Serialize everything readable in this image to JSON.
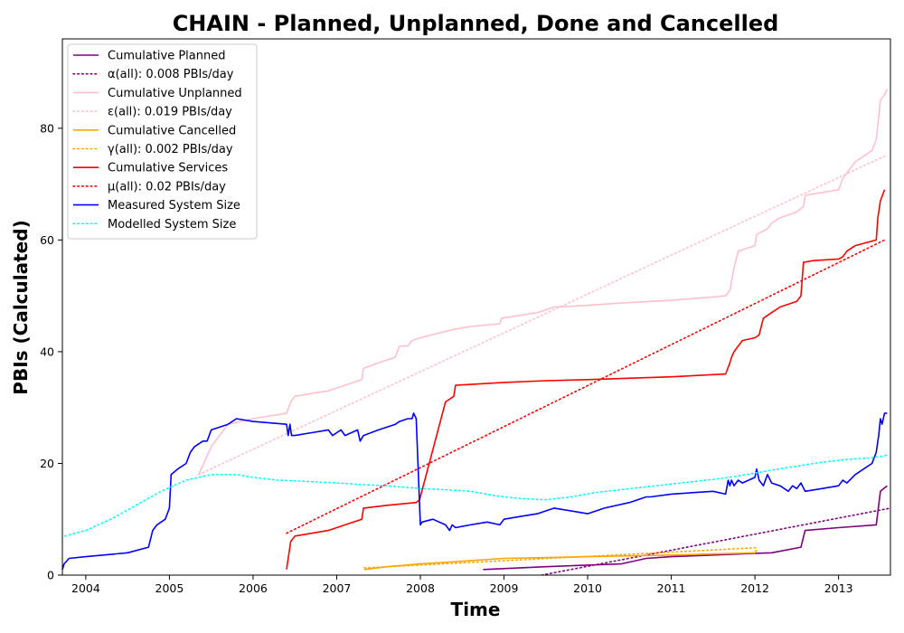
{
  "chart_data": {
    "type": "line",
    "title": "CHAIN - Planned, Unplanned, Done  and Cancelled",
    "xlabel": "Time",
    "ylabel": "PBIs (Calculated)",
    "xlim": [
      2003.72,
      2013.62
    ],
    "ylim": [
      0,
      96
    ],
    "x_ticks": [
      2004,
      2005,
      2006,
      2007,
      2008,
      2009,
      2010,
      2011,
      2012,
      2013
    ],
    "y_ticks": [
      0,
      20,
      40,
      60,
      80
    ],
    "grid": false,
    "legend_position": "top-left",
    "series": [
      {
        "name": "Cumulative Planned",
        "color": "#800080",
        "style": "solid",
        "x": [
          2008.75,
          2009.5,
          2010.0,
          2010.4,
          2010.7,
          2011.0,
          2011.5,
          2012.0,
          2012.2,
          2012.55,
          2012.6,
          2013.0,
          2013.45,
          2013.5,
          2013.58
        ],
        "y": [
          1,
          1.5,
          1.8,
          2,
          3,
          3.3,
          3.6,
          3.9,
          4,
          5,
          8,
          8.5,
          9,
          15,
          16
        ]
      },
      {
        "name": "α(all): 0.008 PBIs/day",
        "color": "#800080",
        "style": "dotted",
        "x": [
          2009.45,
          2013.62
        ],
        "y": [
          0,
          12
        ]
      },
      {
        "name": "Cumulative Unplanned",
        "color": "#ffc0cb",
        "style": "solid",
        "x": [
          2005.35,
          2005.5,
          2005.7,
          2006.0,
          2006.2,
          2006.4,
          2006.45,
          2006.5,
          2006.7,
          2006.9,
          2007.0,
          2007.1,
          2007.3,
          2007.32,
          2007.5,
          2007.7,
          2007.75,
          2007.85,
          2007.9,
          2008.0,
          2008.4,
          2008.6,
          2008.95,
          2008.97,
          2009.4,
          2009.6,
          2009.65,
          2010.0,
          2010.5,
          2011.0,
          2011.5,
          2011.65,
          2011.7,
          2011.75,
          2011.8,
          2012.0,
          2012.02,
          2012.15,
          2012.2,
          2012.3,
          2012.5,
          2012.58,
          2012.6,
          2013.0,
          2013.05,
          2013.1,
          2013.2,
          2013.3,
          2013.4,
          2013.45,
          2013.5,
          2013.55,
          2013.58
        ],
        "y": [
          18,
          23,
          27,
          28,
          28.5,
          29,
          31,
          32,
          32.5,
          33,
          33.5,
          34,
          35,
          37,
          38,
          39,
          41,
          41,
          42,
          42.5,
          44,
          44.5,
          45,
          46,
          47,
          48,
          48,
          48.3,
          48.8,
          49.2,
          49.8,
          50,
          51,
          55,
          58,
          59,
          61,
          62,
          63,
          64,
          65,
          66,
          68,
          69,
          71,
          72,
          74,
          75,
          76,
          78,
          85,
          86,
          87
        ]
      },
      {
        "name": "ε(all): 0.019 PBIs/day",
        "color": "#ffc0cb",
        "style": "dotted",
        "x": [
          2005.35,
          2013.55
        ],
        "y": [
          18,
          75
        ]
      },
      {
        "name": "Cumulative Cancelled",
        "color": "#ffa500",
        "style": "solid",
        "x": [
          2007.33,
          2007.6,
          2008.0,
          2008.5,
          2009.0,
          2010.0,
          2011.0,
          2012.0,
          2012.02
        ],
        "y": [
          1,
          1.5,
          2,
          2.5,
          3,
          3.3,
          3.6,
          4,
          4.5
        ]
      },
      {
        "name": "γ(all): 0.002 PBIs/day",
        "color": "#ffa500",
        "style": "dotted",
        "x": [
          2007.33,
          2012.02
        ],
        "y": [
          1.3,
          4.9
        ]
      },
      {
        "name": "Cumulative Services",
        "color": "#ff0000",
        "style": "solid",
        "x": [
          2006.4,
          2006.42,
          2006.45,
          2006.5,
          2006.7,
          2006.9,
          2007.0,
          2007.1,
          2007.3,
          2007.32,
          2007.6,
          2007.95,
          2007.99,
          2008.0,
          2008.3,
          2008.4,
          2008.42,
          2009.0,
          2009.5,
          2010.0,
          2011.0,
          2011.65,
          2011.7,
          2011.72,
          2011.75,
          2011.8,
          2011.85,
          2012.0,
          2012.05,
          2012.1,
          2012.2,
          2012.3,
          2012.5,
          2012.55,
          2012.58,
          2012.7,
          2013.0,
          2013.05,
          2013.1,
          2013.2,
          2013.45,
          2013.47,
          2013.5,
          2013.55
        ],
        "y": [
          1,
          3,
          6,
          7,
          7.5,
          8,
          8.5,
          9,
          10,
          12,
          12.5,
          13,
          13.5,
          14,
          31,
          32,
          34,
          34.5,
          34.8,
          35,
          35.5,
          36,
          38,
          39,
          40,
          41,
          42,
          42.5,
          43,
          46,
          47,
          48,
          49,
          50,
          56,
          56.3,
          56.6,
          57,
          58,
          59,
          60,
          64,
          67,
          69
        ]
      },
      {
        "name": "μ(all): 0.02 PBIs/day",
        "color": "#ff0000",
        "style": "dotted",
        "x": [
          2006.4,
          2013.55
        ],
        "y": [
          7.5,
          60
        ]
      },
      {
        "name": "Measured System Size",
        "color": "#0000ff",
        "style": "solid",
        "x": [
          2003.72,
          2003.74,
          2003.8,
          2004.0,
          2004.5,
          2004.75,
          2004.8,
          2004.85,
          2004.95,
          2005.0,
          2005.02,
          2005.1,
          2005.2,
          2005.25,
          2005.3,
          2005.4,
          2005.45,
          2005.5,
          2005.7,
          2005.8,
          2006.0,
          2006.4,
          2006.42,
          2006.44,
          2006.46,
          2006.5,
          2006.7,
          2006.9,
          2006.95,
          2007.0,
          2007.05,
          2007.1,
          2007.25,
          2007.28,
          2007.3,
          2007.32,
          2007.5,
          2007.7,
          2007.75,
          2007.85,
          2007.9,
          2007.92,
          2007.95,
          2008.0,
          2008.02,
          2008.15,
          2008.3,
          2008.35,
          2008.38,
          2008.42,
          2008.6,
          2008.8,
          2008.95,
          2009.0,
          2009.2,
          2009.4,
          2009.6,
          2010.0,
          2010.2,
          2010.5,
          2010.7,
          2010.75,
          2011.0,
          2011.5,
          2011.65,
          2011.68,
          2011.7,
          2011.72,
          2011.75,
          2011.8,
          2011.85,
          2012.0,
          2012.02,
          2012.05,
          2012.1,
          2012.15,
          2012.2,
          2012.3,
          2012.4,
          2012.45,
          2012.5,
          2012.55,
          2012.6,
          2012.8,
          2013.0,
          2013.05,
          2013.1,
          2013.2,
          2013.3,
          2013.4,
          2013.45,
          2013.48,
          2013.5,
          2013.52,
          2013.55,
          2013.58
        ],
        "y": [
          1,
          2,
          3,
          3.3,
          4,
          5,
          8,
          9,
          10,
          12,
          18,
          19,
          20,
          22,
          23,
          24,
          24,
          26,
          27,
          28,
          27.5,
          27,
          25,
          27,
          25,
          25,
          25.5,
          26,
          25,
          25.5,
          26,
          25,
          26,
          24,
          24.5,
          25,
          26,
          27,
          27.5,
          28,
          28,
          29,
          28,
          9,
          9.5,
          10,
          9,
          8,
          9,
          8.5,
          9,
          9.5,
          9,
          10,
          10.5,
          11,
          12,
          11,
          12,
          13,
          14,
          14,
          14.5,
          15,
          14.5,
          17,
          16,
          17,
          16,
          17,
          16.5,
          17.5,
          19,
          17,
          16,
          18,
          16.5,
          16,
          15,
          16,
          15.5,
          16.5,
          15,
          15.5,
          16,
          17,
          16.5,
          18,
          19,
          20,
          22,
          25,
          28,
          27,
          29,
          29
        ]
      },
      {
        "name": "Modelled System Size",
        "color": "#00ffff",
        "style": "dotted",
        "x": [
          2003.75,
          2004.0,
          2004.3,
          2004.6,
          2004.9,
          2005.2,
          2005.5,
          2005.8,
          2006.0,
          2006.3,
          2006.6,
          2007.0,
          2007.3,
          2007.6,
          2008.0,
          2008.3,
          2008.6,
          2008.9,
          2009.2,
          2009.5,
          2009.8,
          2010.1,
          2010.4,
          2010.7,
          2011.0,
          2011.3,
          2011.6,
          2011.9,
          2012.2,
          2012.5,
          2012.8,
          2013.1,
          2013.4,
          2013.6
        ],
        "y": [
          7,
          8,
          10,
          12.5,
          15,
          17,
          18,
          18,
          17.5,
          17,
          16.8,
          16.5,
          16.2,
          16,
          15.5,
          15.3,
          15,
          14.2,
          13.7,
          13.5,
          14,
          14.8,
          15.3,
          15.8,
          16.3,
          16.8,
          17.3,
          18,
          18.8,
          19.5,
          20.2,
          20.7,
          21,
          21.5
        ]
      }
    ]
  }
}
